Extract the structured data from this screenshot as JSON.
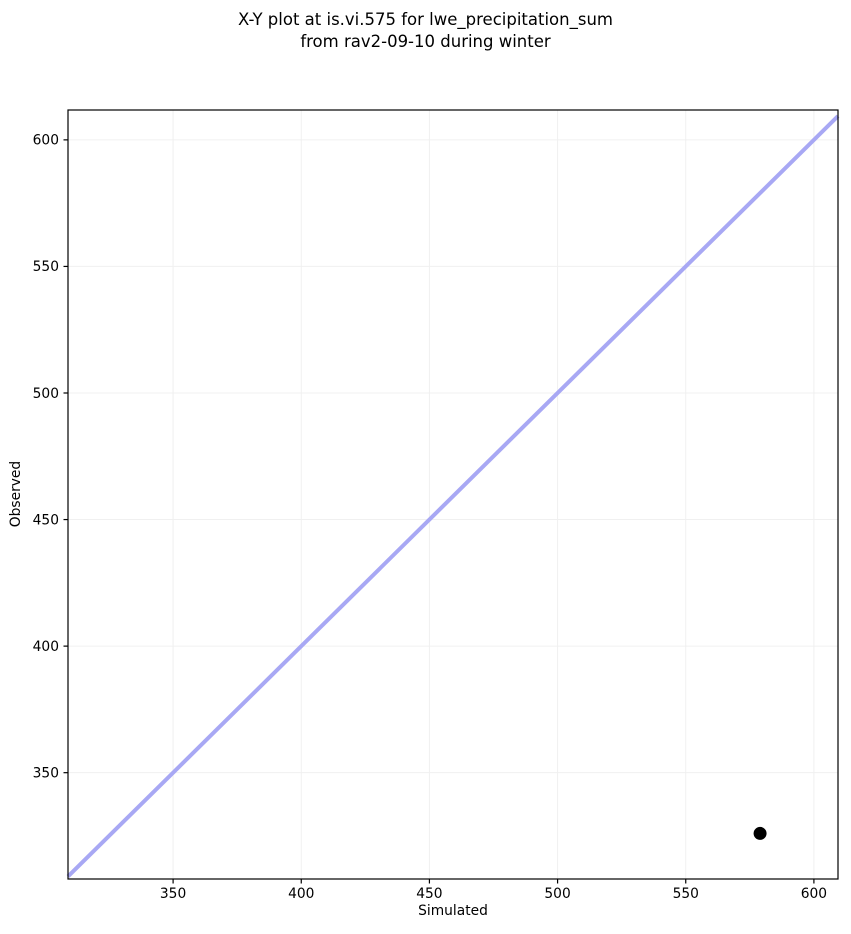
{
  "chart_data": {
    "type": "scatter",
    "title": "X-Y plot at is.vi.575 for lwe_precipitation_sum\nfrom rav2-09-10 during winter",
    "title_lines": [
      "X-Y plot at is.vi.575 for lwe_precipitation_sum",
      "from rav2-09-10 during winter"
    ],
    "xlabel": "Simulated",
    "ylabel": "Observed",
    "xlim": [
      309,
      609.4
    ],
    "ylim": [
      308,
      611.8
    ],
    "xticks": [
      350,
      400,
      450,
      500,
      550,
      600
    ],
    "yticks": [
      350,
      400,
      450,
      500,
      550,
      600
    ],
    "grid": true,
    "legend": false,
    "series": [
      {
        "name": "identity-line",
        "type": "line",
        "slope": 1,
        "intercept": 0,
        "color": "#a8a8f4"
      },
      {
        "name": "observed-vs-simulated",
        "type": "scatter",
        "points": [
          {
            "x": 579,
            "y": 326
          }
        ],
        "color": "#000000"
      }
    ],
    "colors": {
      "marker": "#000000",
      "identity_line": "#a8a8f4",
      "grid": "#f0f0f0",
      "spine": "#000000",
      "tick_label": "#000000",
      "background": "#ffffff"
    }
  }
}
